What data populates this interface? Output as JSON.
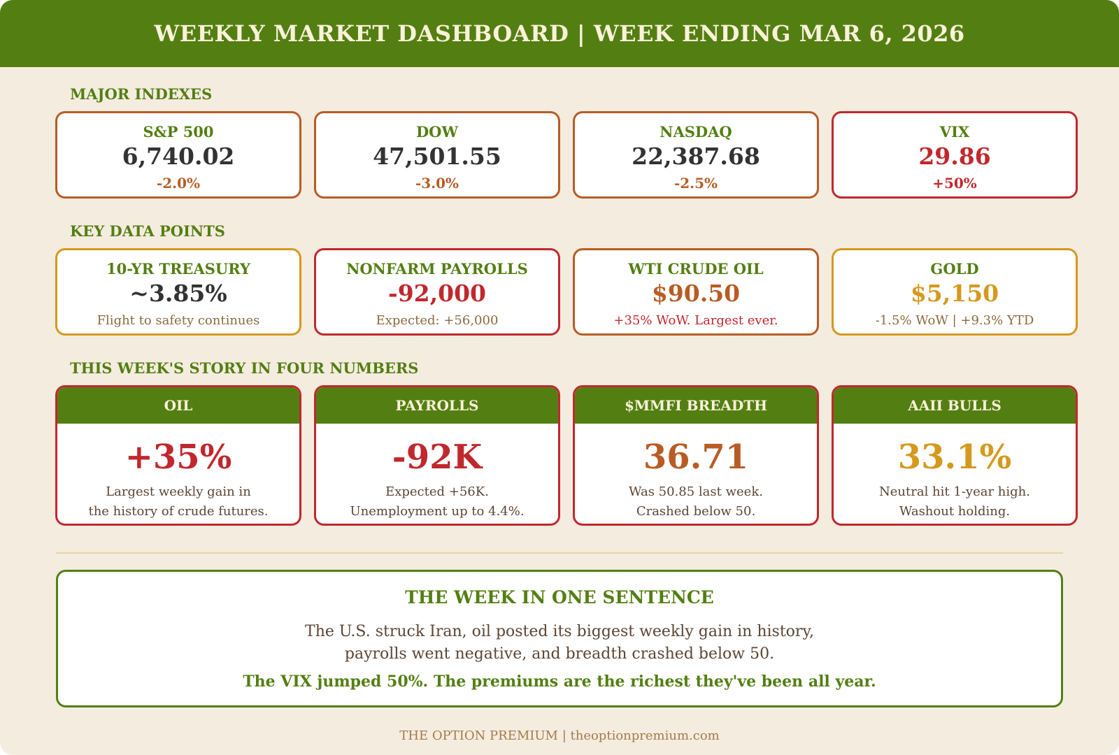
{
  "header": {
    "title": "WEEKLY MARKET DASHBOARD | WEEK ENDING MAR 6, 2026"
  },
  "sections": {
    "indexes": "MAJOR INDEXES",
    "data_points": "KEY DATA POINTS",
    "story": "THIS WEEK'S STORY IN FOUR NUMBERS"
  },
  "indexes": [
    {
      "label": "S&P 500",
      "value": "6,740.02",
      "change": "-2.0%"
    },
    {
      "label": "DOW",
      "value": "47,501.55",
      "change": "-3.0%"
    },
    {
      "label": "NASDAQ",
      "value": "22,387.68",
      "change": "-2.5%"
    },
    {
      "label": "VIX",
      "value": "29.86",
      "change": "+50%"
    }
  ],
  "data_points": [
    {
      "label": "10-YR TREASURY",
      "value": "~3.85%",
      "note": "Flight to safety continues"
    },
    {
      "label": "NONFARM PAYROLLS",
      "value": "-92,000",
      "note": "Expected: +56,000"
    },
    {
      "label": "WTI CRUDE OIL",
      "value": "$90.50",
      "note": "+35% WoW. Largest ever."
    },
    {
      "label": "GOLD",
      "value": "$5,150",
      "note": "-1.5% WoW | +9.3% YTD"
    }
  ],
  "story": [
    {
      "label": "OIL",
      "value": "+35%",
      "line1": "Largest weekly gain in",
      "line2": "the history of crude futures."
    },
    {
      "label": "PAYROLLS",
      "value": "-92K",
      "line1": "Expected +56K.",
      "line2": "Unemployment up to 4.4%."
    },
    {
      "label": "$MMFI BREADTH",
      "value": "36.71",
      "line1": "Was 50.85 last week.",
      "line2": "Crashed below 50."
    },
    {
      "label": "AAII BULLS",
      "value": "33.1%",
      "line1": "Neutral hit 1-year high.",
      "line2": "Washout holding."
    }
  ],
  "summary": {
    "title": "THE WEEK IN ONE SENTENCE",
    "line1": "The U.S. struck Iran, oil posted its biggest weekly gain in history,",
    "line2": "payrolls went negative, and breadth crashed below 50.",
    "punch": "The VIX jumped 50%. The premiums are the richest they've been all year."
  },
  "footer": {
    "text": "THE OPTION PREMIUM | theoptionpremium.com"
  },
  "colors": {
    "green": "#537f12",
    "red": "#c0282d",
    "orange": "#b85c24",
    "gold": "#d4991d",
    "background": "#f5ece0"
  }
}
